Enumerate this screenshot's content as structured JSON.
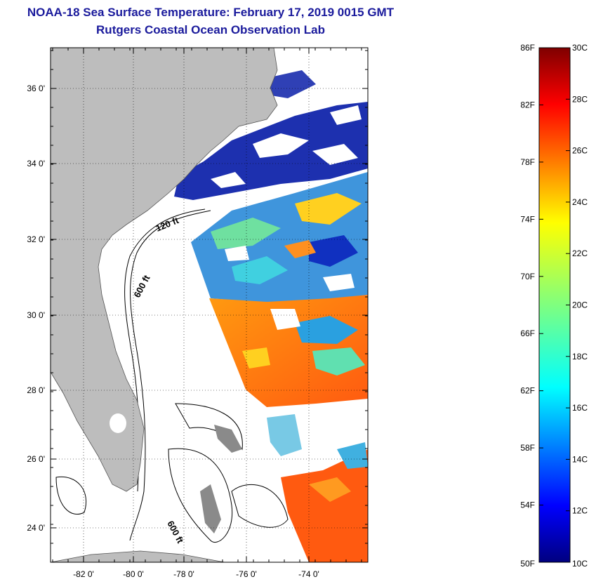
{
  "title_line1": "NOAA-18 Sea Surface Temperature:  February 17, 2019 0015 GMT",
  "title_line2": "Rutgers Coastal Ocean Observation Lab",
  "map": {
    "lat_ticks": [
      "36 0'",
      "34 0'",
      "32 0'",
      "30 0'",
      "28 0'",
      "26 0'",
      "24 0'"
    ],
    "lon_ticks": [
      "-82 0'",
      "-80 0'",
      "-78 0'",
      "-76 0'",
      "-74 0'"
    ],
    "contour_labels": [
      "120 ft",
      "600 ft",
      "600 ft"
    ],
    "colors": {
      "land": "#bdbdbd",
      "ocean": "#ffffff",
      "frame": "#000000"
    }
  },
  "colorbar": {
    "fahrenheit_labels": [
      "86F",
      "82F",
      "78F",
      "74F",
      "70F",
      "66F",
      "62F",
      "58F",
      "54F",
      "50F"
    ],
    "celsius_labels": [
      "30C",
      "28C",
      "26C",
      "24C",
      "22C",
      "20C",
      "18C",
      "16C",
      "14C",
      "12C",
      "10C"
    ]
  }
}
